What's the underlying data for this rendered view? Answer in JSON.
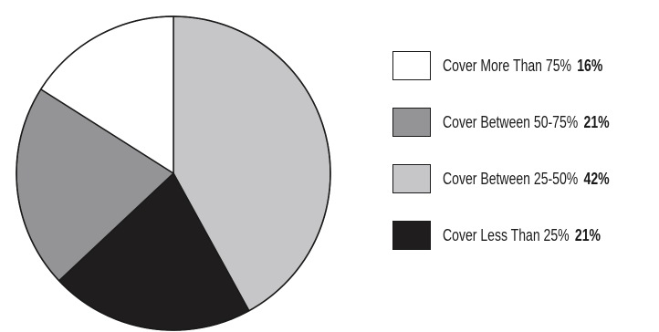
{
  "chart_data": {
    "type": "pie",
    "title": "",
    "slices": [
      {
        "label": "Cover More Than 75%",
        "value": 16,
        "value_label": "16%",
        "color": "#ffffff"
      },
      {
        "label": "Cover Between 50-75%",
        "value": 21,
        "value_label": "21%",
        "color": "#949496"
      },
      {
        "label": "Cover Between 25-50%",
        "value": 42,
        "value_label": "42%",
        "color": "#c6c6c8"
      },
      {
        "label": "Cover Less Than 25%",
        "value": 21,
        "value_label": "21%",
        "color": "#1f1d1e"
      }
    ],
    "start_angle_deg": 0,
    "direction": "clockwise",
    "draw_order": [
      2,
      3,
      1,
      0
    ],
    "outline_color": "#1a1a1a",
    "legend_position": "right"
  }
}
